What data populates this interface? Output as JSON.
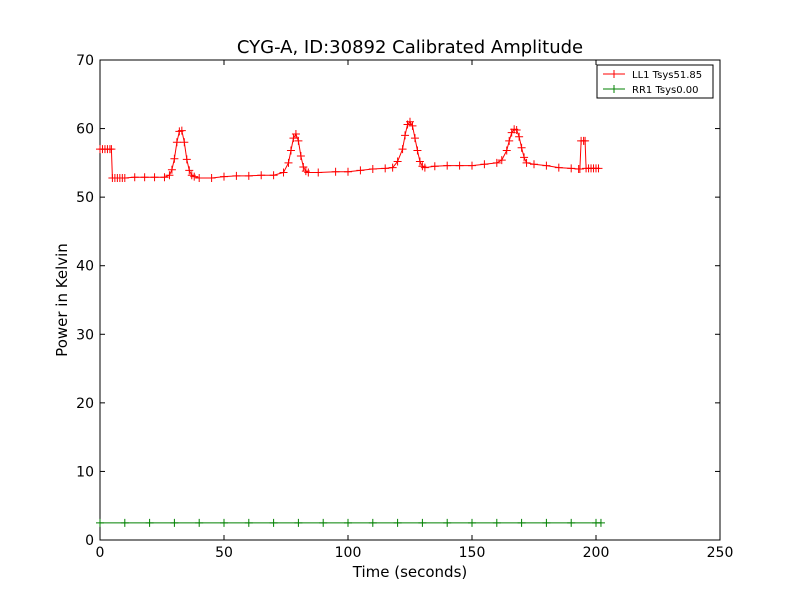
{
  "chart_data": {
    "type": "line",
    "title": "CYG-A, ID:30892 Calibrated Amplitude",
    "xlabel": "Time (seconds)",
    "ylabel": "Power in Kelvin",
    "xlim": [
      0,
      250
    ],
    "ylim": [
      0,
      70
    ],
    "xticks": [
      0,
      50,
      100,
      150,
      200,
      250
    ],
    "yticks": [
      0,
      10,
      20,
      30,
      40,
      50,
      60,
      70
    ],
    "grid": false,
    "legend_position": "top-right",
    "marker": "+",
    "series": [
      {
        "name": "LL1 Tsys51.85",
        "color": "#ff0000",
        "points": [
          [
            0,
            57.0
          ],
          [
            1,
            57.0
          ],
          [
            2,
            57.0
          ],
          [
            3,
            57.0
          ],
          [
            4,
            57.0
          ],
          [
            4.6,
            57.0
          ],
          [
            5,
            52.8
          ],
          [
            6,
            52.8
          ],
          [
            7,
            52.8
          ],
          [
            8,
            52.8
          ],
          [
            9,
            52.8
          ],
          [
            10,
            52.8
          ],
          [
            14,
            52.9
          ],
          [
            18,
            52.9
          ],
          [
            22,
            52.9
          ],
          [
            26,
            52.9
          ],
          [
            28,
            53.2
          ],
          [
            29,
            54.0
          ],
          [
            30,
            55.6
          ],
          [
            31,
            58.0
          ],
          [
            32,
            59.6
          ],
          [
            33,
            59.7
          ],
          [
            34,
            58.0
          ],
          [
            35,
            55.5
          ],
          [
            36,
            53.9
          ],
          [
            37,
            53.2
          ],
          [
            38,
            53.0
          ],
          [
            40,
            52.8
          ],
          [
            45,
            52.8
          ],
          [
            50,
            53.0
          ],
          [
            55,
            53.1
          ],
          [
            60,
            53.1
          ],
          [
            65,
            53.2
          ],
          [
            70,
            53.2
          ],
          [
            74,
            53.6
          ],
          [
            76,
            55.0
          ],
          [
            77,
            56.8
          ],
          [
            78,
            58.6
          ],
          [
            79,
            59.2
          ],
          [
            80,
            58.2
          ],
          [
            81,
            56.0
          ],
          [
            82,
            54.4
          ],
          [
            83,
            53.8
          ],
          [
            84,
            53.6
          ],
          [
            88,
            53.6
          ],
          [
            95,
            53.7
          ],
          [
            100,
            53.7
          ],
          [
            105,
            53.9
          ],
          [
            110,
            54.1
          ],
          [
            115,
            54.2
          ],
          [
            118,
            54.3
          ],
          [
            120,
            55.2
          ],
          [
            122,
            57.0
          ],
          [
            123,
            59.0
          ],
          [
            124,
            60.6
          ],
          [
            125,
            61.0
          ],
          [
            126,
            60.4
          ],
          [
            127,
            58.6
          ],
          [
            128,
            56.8
          ],
          [
            129,
            55.2
          ],
          [
            130,
            54.5
          ],
          [
            131,
            54.3
          ],
          [
            135,
            54.5
          ],
          [
            140,
            54.6
          ],
          [
            145,
            54.6
          ],
          [
            150,
            54.6
          ],
          [
            155,
            54.8
          ],
          [
            160,
            55.0
          ],
          [
            162,
            55.4
          ],
          [
            164,
            56.8
          ],
          [
            165,
            58.2
          ],
          [
            166,
            59.4
          ],
          [
            167,
            59.9
          ],
          [
            168,
            59.8
          ],
          [
            169,
            58.8
          ],
          [
            170,
            57.2
          ],
          [
            171,
            55.8
          ],
          [
            172,
            55.0
          ],
          [
            175,
            54.8
          ],
          [
            180,
            54.6
          ],
          [
            185,
            54.3
          ],
          [
            190,
            54.2
          ],
          [
            193,
            54.1
          ],
          [
            193.5,
            54.1
          ],
          [
            194,
            58.2
          ],
          [
            195,
            58.2
          ],
          [
            195.6,
            58.2
          ],
          [
            196,
            54.2
          ],
          [
            197,
            54.2
          ],
          [
            198,
            54.2
          ],
          [
            199,
            54.2
          ],
          [
            200,
            54.2
          ],
          [
            201,
            54.2
          ]
        ]
      },
      {
        "name": "RR1 Tsys0.00",
        "color": "#008000",
        "points": [
          [
            0,
            2.5
          ],
          [
            10,
            2.5
          ],
          [
            20,
            2.5
          ],
          [
            30,
            2.5
          ],
          [
            40,
            2.5
          ],
          [
            50,
            2.5
          ],
          [
            60,
            2.5
          ],
          [
            70,
            2.5
          ],
          [
            80,
            2.5
          ],
          [
            90,
            2.5
          ],
          [
            100,
            2.5
          ],
          [
            110,
            2.5
          ],
          [
            120,
            2.5
          ],
          [
            130,
            2.5
          ],
          [
            140,
            2.5
          ],
          [
            150,
            2.5
          ],
          [
            160,
            2.5
          ],
          [
            170,
            2.5
          ],
          [
            180,
            2.5
          ],
          [
            190,
            2.5
          ],
          [
            200,
            2.5
          ],
          [
            202,
            2.5
          ]
        ]
      }
    ]
  }
}
